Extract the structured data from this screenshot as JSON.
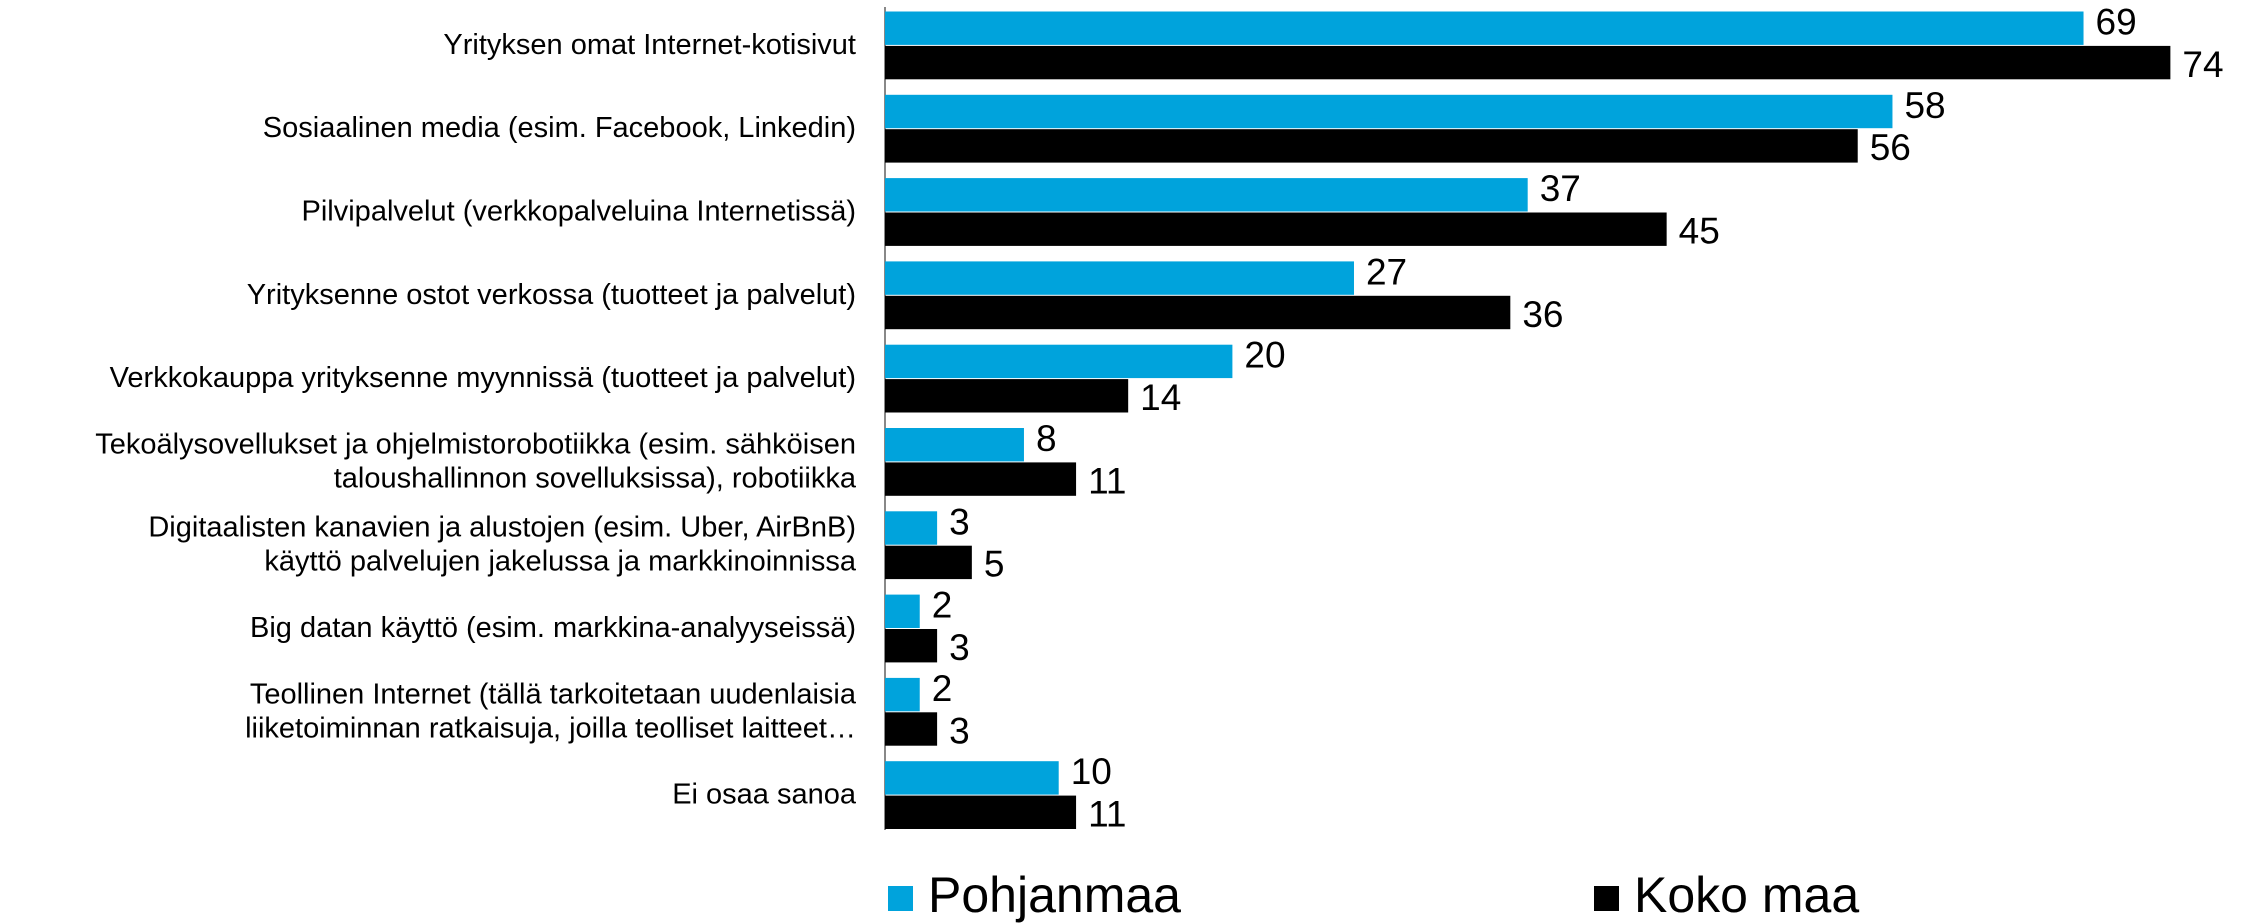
{
  "chart_data": {
    "type": "hbar",
    "categories": [
      "Yrityksen omat Internet-kotisivut",
      "Sosiaalinen media (esim. Facebook, Linkedin)",
      "Pilvipalvelut  (verkkopalveluina Internetissä)",
      "Yrityksenne ostot verkossa (tuotteet ja palvelut)",
      "Verkkokauppa yrityksenne myynnissä (tuotteet ja palvelut)",
      "Tekoälysovellukset ja ohjelmistorobotiikka (esim. sähköisen\ntaloushallinnon sovelluksissa), robotiikka",
      "Digitaalisten kanavien ja alustojen (esim. Uber, AirBnB)\nkäyttö palvelujen jakelussa ja markkinoinnissa",
      "Big datan käyttö (esim. markkina-analyyseissä)",
      "Teollinen Internet (tällä tarkoitetaan uudenlaisia\nliiketoiminnan ratkaisuja, joilla teolliset laitteet…",
      "Ei osaa sanoa"
    ],
    "series": [
      {
        "name": "Pohjanmaa",
        "color": "#00a3dc",
        "values": [
          69,
          58,
          37,
          27,
          20,
          8,
          3,
          2,
          2,
          10
        ]
      },
      {
        "name": "Koko maa",
        "color": "#000000",
        "values": [
          74,
          56,
          45,
          36,
          14,
          11,
          5,
          3,
          3,
          11
        ]
      }
    ],
    "legend": "bottom"
  }
}
